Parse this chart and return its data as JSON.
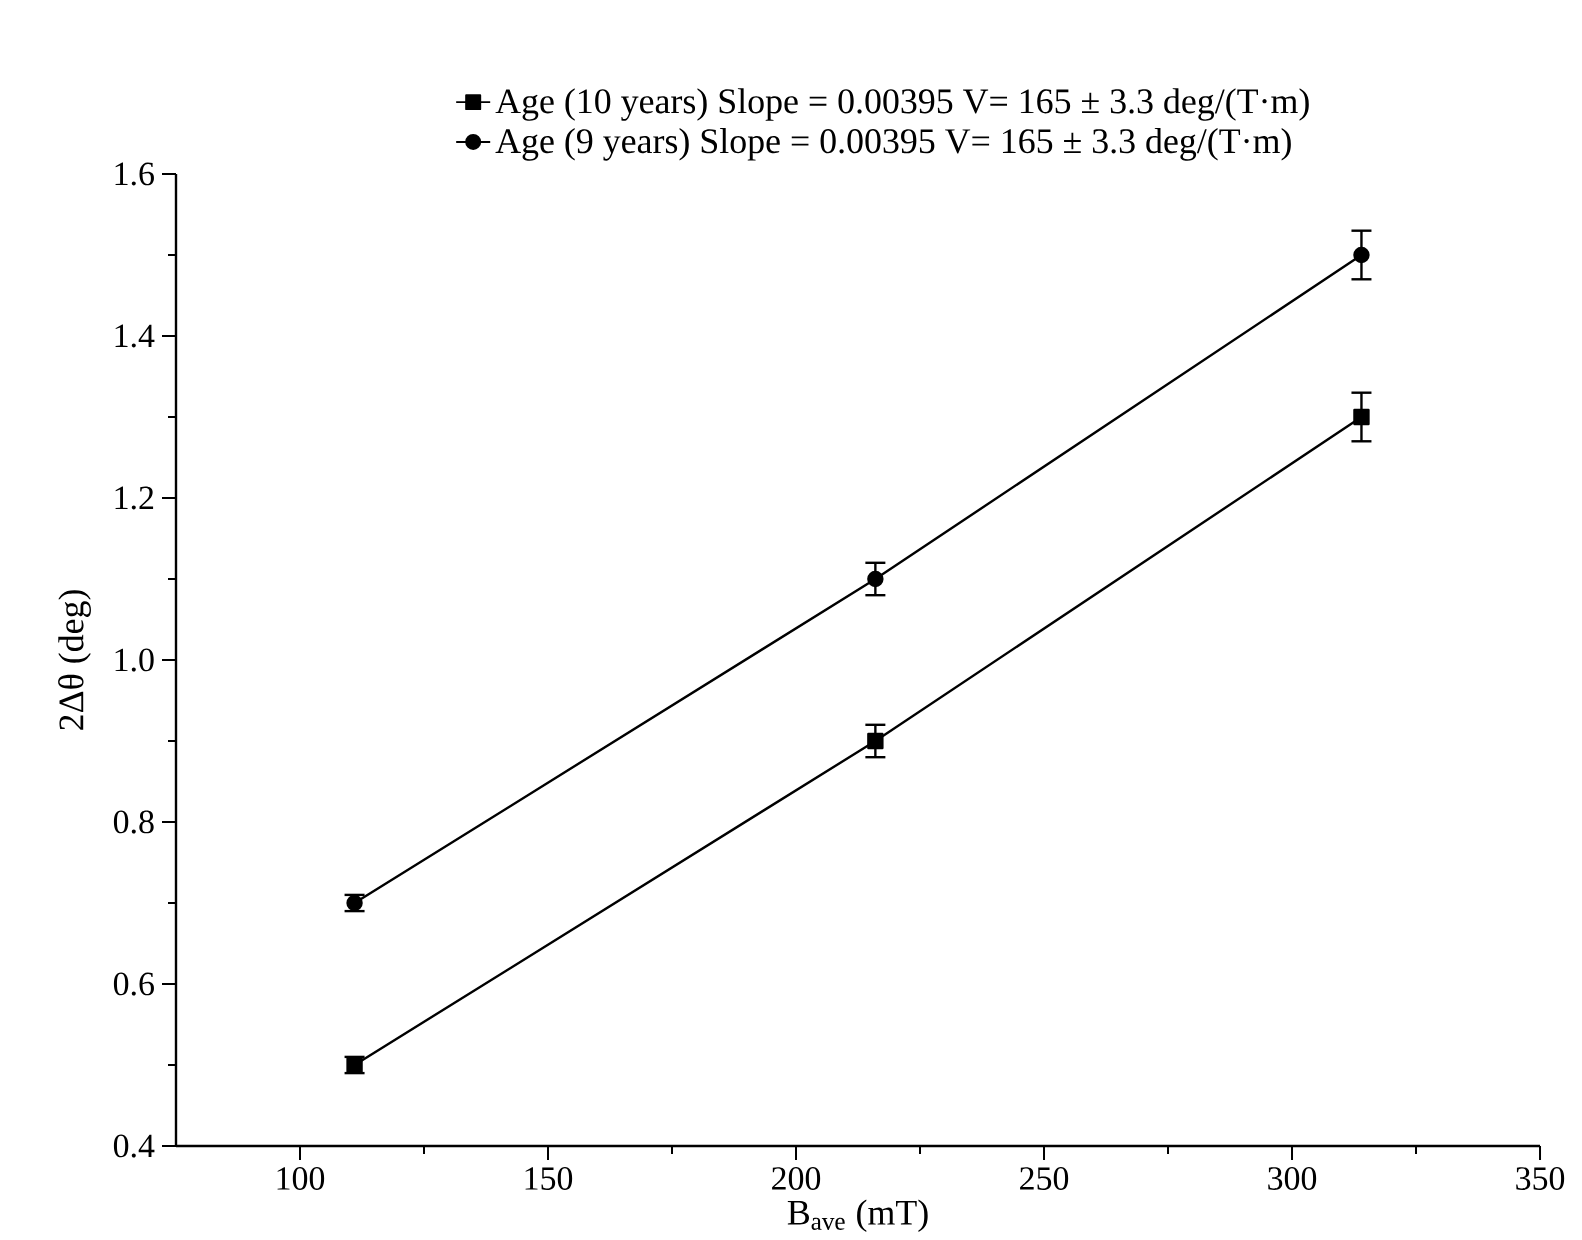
{
  "chart_data": {
    "type": "line",
    "xlabel": "B$_{ave}$ (mT)",
    "ylabel": "2Δθ (deg)",
    "xlim": [
      75,
      350
    ],
    "xticks": [
      100,
      150,
      200,
      250,
      300,
      350
    ],
    "ylim": [
      0.4,
      1.6
    ],
    "yticks": [
      0.4,
      0.6,
      0.8,
      {
        "value": 1.0,
        "label": "1.0"
      },
      1.2,
      1.4,
      1.6
    ],
    "legend": "top",
    "grid": false,
    "line_style": "solid",
    "series": [
      {
        "name": "Age (10 years) Slope = 0.00395 V= 165 ± 3.3 deg/(T·m)",
        "color": "#000000",
        "marker": "square",
        "x": [
          111,
          216,
          314
        ],
        "values": [
          0.5,
          0.9,
          1.3
        ],
        "errors": [
          0.01,
          0.02,
          0.03
        ]
      },
      {
        "name": "Age (9 years) Slope = 0.00395 V= 165 ± 3.3 deg/(T·m)",
        "color": "#000000",
        "marker": "circle",
        "x": [
          111,
          216,
          314
        ],
        "values": [
          0.7,
          1.1,
          1.5
        ],
        "errors": [
          0.01,
          0.02,
          0.03
        ]
      }
    ]
  }
}
